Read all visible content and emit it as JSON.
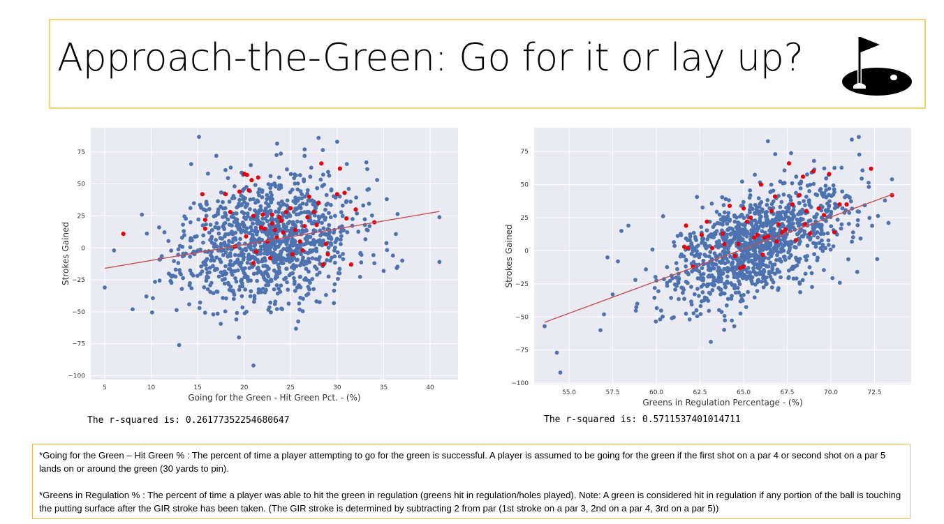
{
  "slide": {
    "title": "Approach-the-Green: Go for it or lay up?",
    "icon": "golf-flag-hole-icon"
  },
  "chart_data": [
    {
      "type": "scatter",
      "title": "",
      "xlabel": "Going for the Green - Hit Green Pct. - (%)",
      "ylabel": "Strokes Gained",
      "xlim": [
        3.5,
        43
      ],
      "ylim": [
        -103,
        94
      ],
      "xticks": [
        5,
        10,
        15,
        20,
        25,
        30,
        35,
        40
      ],
      "yticks": [
        75,
        50,
        25,
        0,
        -25,
        -50,
        -75,
        -100
      ],
      "grid": true,
      "regression": {
        "x": [
          5,
          41
        ],
        "y": [
          -16,
          28.5
        ]
      },
      "highlight": [
        {
          "x": 7,
          "y": 11
        },
        {
          "x": 15.5,
          "y": 42
        },
        {
          "x": 15.8,
          "y": 22
        },
        {
          "x": 15.8,
          "y": 15
        },
        {
          "x": 18,
          "y": 42
        },
        {
          "x": 18.5,
          "y": 28
        },
        {
          "x": 19,
          "y": 1
        },
        {
          "x": 19.5,
          "y": 44
        },
        {
          "x": 20,
          "y": 58
        },
        {
          "x": 20.3,
          "y": 57
        },
        {
          "x": 20.5,
          "y": 45
        },
        {
          "x": 20.8,
          "y": 53
        },
        {
          "x": 21,
          "y": 25
        },
        {
          "x": 21,
          "y": -12
        },
        {
          "x": 21.3,
          "y": -3
        },
        {
          "x": 21.5,
          "y": 55
        },
        {
          "x": 21.8,
          "y": 16
        },
        {
          "x": 22,
          "y": 26
        },
        {
          "x": 22.2,
          "y": 15
        },
        {
          "x": 22.5,
          "y": 5
        },
        {
          "x": 23,
          "y": 26
        },
        {
          "x": 23,
          "y": 19
        },
        {
          "x": 23.3,
          "y": 14
        },
        {
          "x": 23.5,
          "y": 8
        },
        {
          "x": 23.8,
          "y": 24
        },
        {
          "x": 24,
          "y": 21
        },
        {
          "x": 24.2,
          "y": 12
        },
        {
          "x": 24.5,
          "y": 28
        },
        {
          "x": 25,
          "y": 31
        },
        {
          "x": 25.2,
          "y": -5
        },
        {
          "x": 25.5,
          "y": 14
        },
        {
          "x": 26,
          "y": 5
        },
        {
          "x": 26.3,
          "y": -2
        },
        {
          "x": 26.5,
          "y": 17
        },
        {
          "x": 27,
          "y": 40
        },
        {
          "x": 27.5,
          "y": 28
        },
        {
          "x": 27.8,
          "y": 18
        },
        {
          "x": 28,
          "y": 35
        },
        {
          "x": 28.3,
          "y": 66
        },
        {
          "x": 28.5,
          "y": -13
        },
        {
          "x": 28.8,
          "y": 3
        },
        {
          "x": 29,
          "y": -5
        },
        {
          "x": 30,
          "y": 42
        },
        {
          "x": 30.3,
          "y": 62
        },
        {
          "x": 30.8,
          "y": 43
        },
        {
          "x": 31,
          "y": 23
        },
        {
          "x": 31.5,
          "y": -13
        },
        {
          "x": 32,
          "y": 30
        },
        {
          "x": 34,
          "y": 20
        },
        {
          "x": 22.8,
          "y": -8
        },
        {
          "x": 20.2,
          "y": 9
        },
        {
          "x": 26.8,
          "y": 24
        }
      ],
      "annotation": "The r-squared is: 0.26177352254680647"
    },
    {
      "type": "scatter",
      "title": "",
      "xlabel": "Greens in Regulation Percentage - (%)",
      "ylabel": "Strokes Gained",
      "xlim": [
        53,
        74.6
      ],
      "ylim": [
        -101,
        93
      ],
      "xticks": [
        55.0,
        57.5,
        60.0,
        62.5,
        65.0,
        67.5,
        70.0,
        72.5
      ],
      "xtick_labels": [
        "55.0",
        "57.5",
        "60.0",
        "62.5",
        "65.0",
        "67.5",
        "70.0",
        "72.5"
      ],
      "yticks": [
        75,
        50,
        25,
        0,
        -25,
        -50,
        -75,
        -100
      ],
      "grid": true,
      "regression": {
        "x": [
          53.6,
          73.6
        ],
        "y": [
          -54,
          43
        ]
      },
      "highlight": [
        {
          "x": 61.7,
          "y": 19
        },
        {
          "x": 61.6,
          "y": 3
        },
        {
          "x": 61.8,
          "y": 2
        },
        {
          "x": 62.1,
          "y": -12
        },
        {
          "x": 62.6,
          "y": 12
        },
        {
          "x": 62.9,
          "y": 22
        },
        {
          "x": 63.2,
          "y": 2
        },
        {
          "x": 63.8,
          "y": 13
        },
        {
          "x": 63.9,
          "y": 5
        },
        {
          "x": 64.2,
          "y": 34
        },
        {
          "x": 64.5,
          "y": -4
        },
        {
          "x": 64.7,
          "y": 5
        },
        {
          "x": 64.8,
          "y": -13
        },
        {
          "x": 65,
          "y": 32
        },
        {
          "x": 65,
          "y": -12
        },
        {
          "x": 65.2,
          "y": 22
        },
        {
          "x": 65.4,
          "y": 25
        },
        {
          "x": 65.6,
          "y": 10
        },
        {
          "x": 65.8,
          "y": 12
        },
        {
          "x": 66,
          "y": 50
        },
        {
          "x": 66.2,
          "y": 10
        },
        {
          "x": 66.4,
          "y": 11
        },
        {
          "x": 66.6,
          "y": 30
        },
        {
          "x": 66.8,
          "y": 41
        },
        {
          "x": 67,
          "y": 20
        },
        {
          "x": 67.2,
          "y": 14
        },
        {
          "x": 67.4,
          "y": 16
        },
        {
          "x": 67.6,
          "y": 66
        },
        {
          "x": 67.8,
          "y": 35
        },
        {
          "x": 68,
          "y": 8
        },
        {
          "x": 68.2,
          "y": 42
        },
        {
          "x": 68.4,
          "y": 56
        },
        {
          "x": 68.6,
          "y": 30
        },
        {
          "x": 68.8,
          "y": 13
        },
        {
          "x": 69,
          "y": 60
        },
        {
          "x": 69.3,
          "y": 32
        },
        {
          "x": 69.6,
          "y": 27
        },
        {
          "x": 69.9,
          "y": 58
        },
        {
          "x": 70.2,
          "y": 14
        },
        {
          "x": 70.5,
          "y": 35
        },
        {
          "x": 70.9,
          "y": 35
        },
        {
          "x": 72.3,
          "y": 62
        },
        {
          "x": 73.5,
          "y": 42
        },
        {
          "x": 66.9,
          "y": 7
        },
        {
          "x": 66.1,
          "y": -3
        },
        {
          "x": 68.5,
          "y": 20
        }
      ],
      "annotation": "The r-squared is: 0.5711537401014711"
    }
  ],
  "notes": {
    "go_for_green": "*Going for the Green – Hit Green % : The percent of time a player attempting to go for the green is successful. A player is assumed to be going for the green if the first shot on a par 4 or second shot on a par 5 lands on or around the green (30 yards to pin).",
    "gir": "*Greens in Regulation % : The percent of time a player was able to hit the green in regulation (greens hit in regulation/holes played). Note: A green is considered hit in regulation if any portion of the ball is touching the putting surface after the GIR stroke has been taken. (The GIR stroke is determined by subtracting 2 from par (1st stroke on a par 3, 2nd on a par 4, 3rd on a par 5))"
  },
  "colors": {
    "plot_bg": "#eaeaf2",
    "grid": "#ffffff",
    "point": "#4c72b0",
    "highlight": "#e8000b",
    "regression": "#c44e52",
    "title_border": "#f5d36a",
    "notes_border": "#f0b840"
  }
}
